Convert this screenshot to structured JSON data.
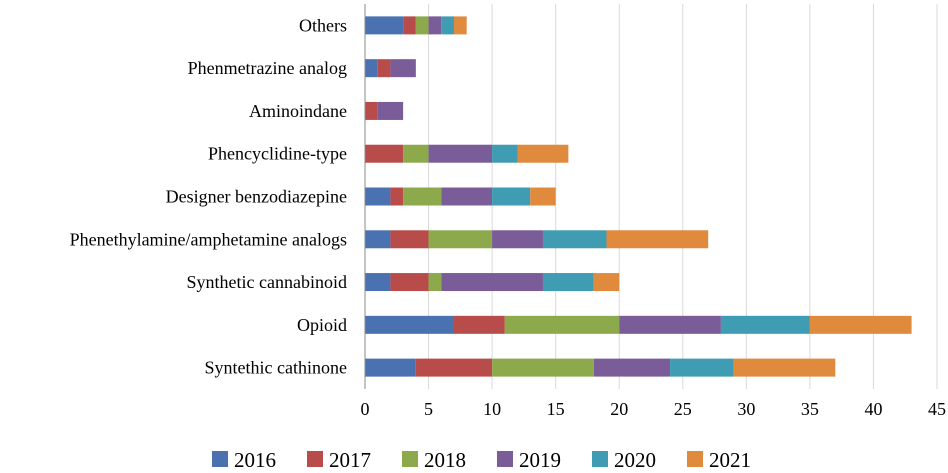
{
  "chart_data": {
    "type": "bar",
    "orientation": "horizontal",
    "stacked": true,
    "title": "",
    "xlabel": "",
    "ylabel": "",
    "xlim": [
      0,
      45
    ],
    "x_ticks": [
      0,
      5,
      10,
      15,
      20,
      25,
      30,
      35,
      40,
      45
    ],
    "grid": true,
    "legend_position": "bottom",
    "categories": [
      "Others",
      "Phenmetrazine analog",
      "Aminoindane",
      "Phencyclidine-type",
      "Designer benzodiazepine",
      "Phenethylamine/amphetamine analogs",
      "Synthetic cannabinoid",
      "Opioid",
      "Syntethic cathinone"
    ],
    "series": [
      {
        "name": "2016",
        "color": "#4a72b0",
        "values": [
          3,
          1,
          0,
          0,
          2,
          2,
          2,
          7,
          4
        ]
      },
      {
        "name": "2017",
        "color": "#b84c4a",
        "values": [
          1,
          1,
          1,
          3,
          1,
          3,
          3,
          4,
          6
        ]
      },
      {
        "name": "2018",
        "color": "#8caa4c",
        "values": [
          1,
          0,
          0,
          2,
          3,
          5,
          1,
          9,
          8
        ]
      },
      {
        "name": "2019",
        "color": "#7a5c98",
        "values": [
          1,
          2,
          2,
          5,
          4,
          4,
          8,
          8,
          6
        ]
      },
      {
        "name": "2020",
        "color": "#3f9cb3",
        "values": [
          1,
          0,
          0,
          2,
          3,
          5,
          4,
          7,
          5
        ]
      },
      {
        "name": "2021",
        "color": "#e08a3e",
        "values": [
          1,
          0,
          0,
          4,
          2,
          8,
          2,
          8,
          8
        ]
      }
    ]
  }
}
